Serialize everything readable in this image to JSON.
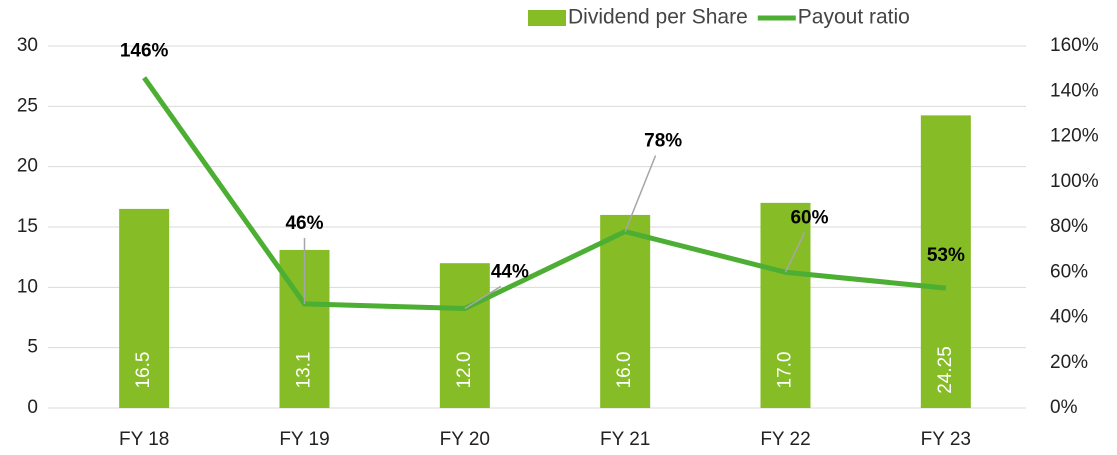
{
  "chart_data": {
    "type": "bar-line",
    "categories": [
      "FY 18",
      "FY 19",
      "FY 20",
      "FY 21",
      "FY 22",
      "FY 23"
    ],
    "series": [
      {
        "name": "Dividend per Share",
        "type": "bar",
        "color": "#86bc25",
        "values": [
          16.5,
          13.1,
          12.0,
          16.0,
          17.0,
          24.25
        ],
        "value_labels": [
          "16.5",
          "13.1",
          "12.0",
          "16.0",
          "17.0",
          "24.25"
        ]
      },
      {
        "name": "Payout ratio",
        "type": "line",
        "axis": "y2",
        "color": "#4cae32",
        "values": [
          146,
          46,
          44,
          78,
          60,
          53
        ],
        "value_labels": [
          "146%",
          "46%",
          "44%",
          "78%",
          "60%",
          "53%"
        ]
      }
    ],
    "ylim": [
      0,
      30
    ],
    "yticks": [
      0,
      5,
      10,
      15,
      20,
      25,
      30
    ],
    "y2lim": [
      0,
      160
    ],
    "y2ticks": [
      {
        "value": 0,
        "label": "0%"
      },
      {
        "value": 20,
        "label": "20%"
      },
      {
        "value": 40,
        "label": "40%"
      },
      {
        "value": 60,
        "label": "60%"
      },
      {
        "value": 80,
        "label": "80%"
      },
      {
        "value": 100,
        "label": "100%"
      },
      {
        "value": 120,
        "label": "120%"
      },
      {
        "value": 140,
        "label": "140%"
      },
      {
        "value": 160,
        "label": "160%"
      }
    ],
    "grid": true,
    "legend": "top-right"
  }
}
